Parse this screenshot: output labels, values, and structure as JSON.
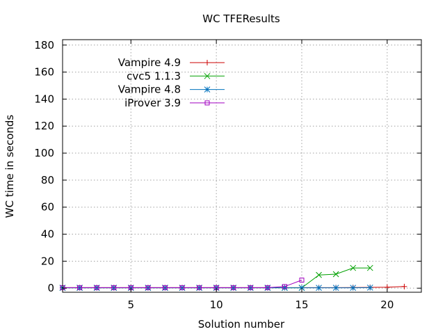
{
  "chart_data": {
    "type": "line",
    "title": "WC TFEResults",
    "xlabel": "Solution number",
    "ylabel": "WC time in seconds",
    "xlim": [
      1,
      22
    ],
    "ylim": [
      -3,
      184
    ],
    "x_ticks": [
      5,
      10,
      15,
      20
    ],
    "y_ticks": [
      0,
      20,
      40,
      60,
      80,
      100,
      120,
      140,
      160,
      180
    ],
    "grid": true,
    "legend_position": "top-left",
    "series": [
      {
        "name": "Vampire 4.9",
        "color": "#cc0000",
        "marker": "plus",
        "x": [
          1,
          2,
          3,
          4,
          5,
          6,
          7,
          8,
          9,
          10,
          11,
          12,
          13,
          14,
          15,
          16,
          17,
          18,
          19,
          20,
          21
        ],
        "y": [
          0.4,
          0.4,
          0.4,
          0.4,
          0.4,
          0.4,
          0.4,
          0.4,
          0.4,
          0.4,
          0.4,
          0.4,
          0.4,
          0.4,
          0.4,
          0.4,
          0.4,
          0.5,
          0.6,
          0.7,
          1.2
        ]
      },
      {
        "name": "cvc5 1.1.3",
        "color": "#00a000",
        "marker": "cross",
        "x": [
          1,
          2,
          3,
          4,
          5,
          6,
          7,
          8,
          9,
          10,
          11,
          12,
          13,
          14,
          15,
          16,
          17,
          18,
          19
        ],
        "y": [
          0.3,
          0.3,
          0.3,
          0.3,
          0.3,
          0.3,
          0.3,
          0.3,
          0.3,
          0.3,
          0.3,
          0.3,
          0.3,
          0.3,
          0.3,
          9.8,
          10.4,
          15.0,
          15.0
        ]
      },
      {
        "name": "Vampire 4.8",
        "color": "#0072bd",
        "marker": "star",
        "x": [
          1,
          2,
          3,
          4,
          5,
          6,
          7,
          8,
          9,
          10,
          11,
          12,
          13,
          14,
          15,
          16,
          17,
          18,
          19
        ],
        "y": [
          0.3,
          0.3,
          0.3,
          0.3,
          0.3,
          0.3,
          0.3,
          0.3,
          0.3,
          0.3,
          0.3,
          0.3,
          0.3,
          0.3,
          0.3,
          0.3,
          0.3,
          0.3,
          0.4
        ]
      },
      {
        "name": "iProver 3.9",
        "color": "#a000c0",
        "marker": "square",
        "x": [
          1,
          2,
          3,
          4,
          5,
          6,
          7,
          8,
          9,
          10,
          11,
          12,
          13,
          14,
          15
        ],
        "y": [
          0.4,
          0.4,
          0.4,
          0.4,
          0.4,
          0.4,
          0.4,
          0.4,
          0.4,
          0.4,
          0.4,
          0.4,
          0.4,
          1.2,
          6.0
        ]
      }
    ]
  }
}
